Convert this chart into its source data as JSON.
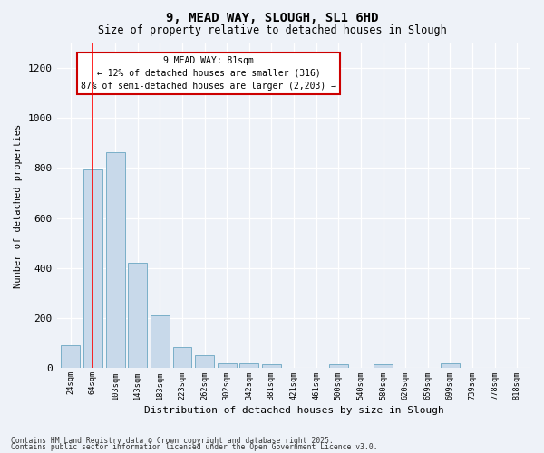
{
  "title1": "9, MEAD WAY, SLOUGH, SL1 6HD",
  "title2": "Size of property relative to detached houses in Slough",
  "xlabel": "Distribution of detached houses by size in Slough",
  "ylabel": "Number of detached properties",
  "bar_values": [
    90,
    795,
    865,
    420,
    210,
    85,
    50,
    20,
    20,
    15,
    0,
    0,
    15,
    0,
    15,
    0,
    0,
    20,
    0,
    0,
    0
  ],
  "x_tick_labels": [
    "24sqm",
    "64sqm",
    "103sqm",
    "143sqm",
    "183sqm",
    "223sqm",
    "262sqm",
    "302sqm",
    "342sqm",
    "381sqm",
    "421sqm",
    "461sqm",
    "500sqm",
    "540sqm",
    "580sqm",
    "620sqm",
    "659sqm",
    "699sqm",
    "739sqm",
    "778sqm",
    "818sqm"
  ],
  "bar_color": "#c8d9ea",
  "bar_edge_color": "#7aafc8",
  "annotation_box_text": "9 MEAD WAY: 81sqm\n← 12% of detached houses are smaller (316)\n87% of semi-detached houses are larger (2,203) →",
  "annotation_box_color": "#ffffff",
  "annotation_box_edge_color": "#cc0000",
  "red_line_x": 1.0,
  "ylim": [
    0,
    1300
  ],
  "yticks": [
    0,
    200,
    400,
    600,
    800,
    1000,
    1200
  ],
  "background_color": "#eef2f8",
  "footer1": "Contains HM Land Registry data © Crown copyright and database right 2025.",
  "footer2": "Contains public sector information licensed under the Open Government Licence v3.0."
}
